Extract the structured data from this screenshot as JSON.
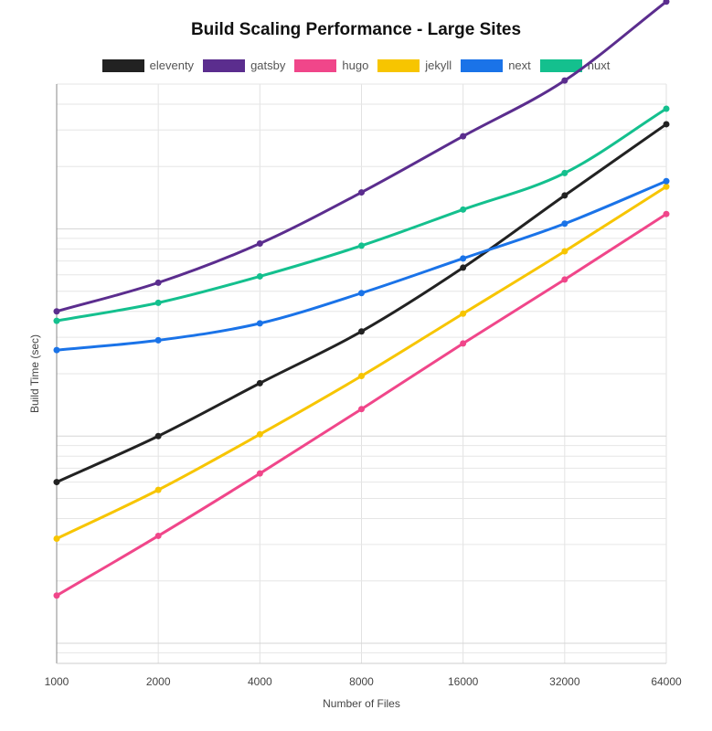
{
  "chart_data": {
    "type": "line",
    "title": "Build Scaling Performance - Large Sites",
    "xlabel": "Number of Files",
    "ylabel": "Build Time (sec)",
    "x_scale": "log2",
    "y_scale": "log",
    "x": [
      1000,
      2000,
      4000,
      8000,
      16000,
      32000,
      64000
    ],
    "x_tick_labels": [
      "1000",
      "2000",
      "4000",
      "8000",
      "16000",
      "32000",
      "64000"
    ],
    "ylim": [
      0.8,
      500
    ],
    "grid": true,
    "legend_position": "top",
    "series": [
      {
        "name": "eleventy",
        "color": "#222222",
        "values": [
          6,
          10,
          18,
          32,
          65,
          145,
          320
        ]
      },
      {
        "name": "gatsby",
        "color": "#5b2d8e",
        "values": [
          40,
          55,
          85,
          150,
          280,
          520,
          1250
        ]
      },
      {
        "name": "hugo",
        "color": "#f0468a",
        "values": [
          1.7,
          3.3,
          6.6,
          13.5,
          28,
          57,
          118
        ]
      },
      {
        "name": "jekyll",
        "color": "#f7c500",
        "values": [
          3.2,
          5.5,
          10.2,
          19.5,
          39,
          78,
          160
        ]
      },
      {
        "name": "next",
        "color": "#1a73e8",
        "values": [
          26,
          29,
          35,
          49,
          72,
          106,
          170
        ]
      },
      {
        "name": "nuxt",
        "color": "#14c08e",
        "values": [
          36,
          44,
          59,
          83,
          124,
          186,
          380
        ]
      }
    ]
  }
}
